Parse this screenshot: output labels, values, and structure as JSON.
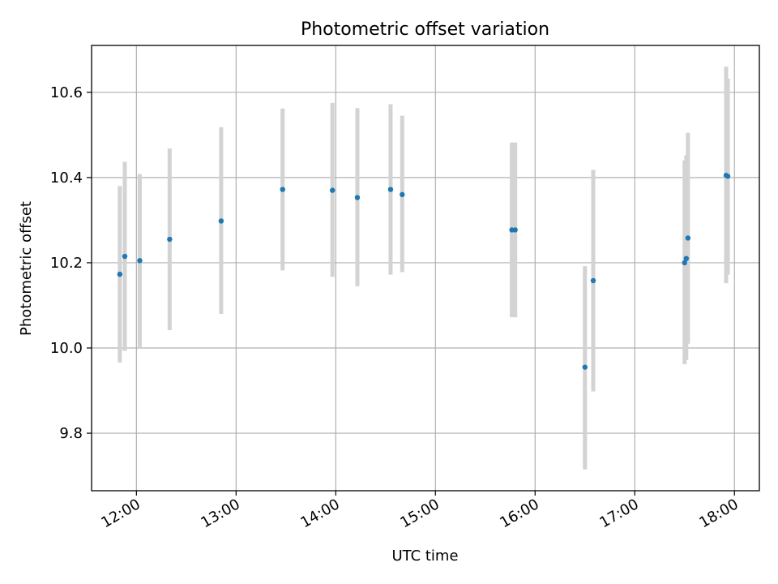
{
  "chart_data": {
    "type": "scatter",
    "title": "Photometric offset variation",
    "xlabel": "UTC time",
    "ylabel": "Photometric offset",
    "x_ticks": [
      "12:00",
      "13:00",
      "14:00",
      "15:00",
      "16:00",
      "17:00",
      "18:00"
    ],
    "y_ticks": [
      "9.8",
      "10.0",
      "10.2",
      "10.4",
      "10.6"
    ],
    "xlim": [
      "11:33",
      "18:15"
    ],
    "ylim": [
      9.665,
      10.71
    ],
    "grid": true,
    "colors": {
      "point": "#1f77b4",
      "errorbar": "#d3d3d3",
      "grid": "#b0b0b0"
    },
    "points": [
      {
        "x": "11:50",
        "y": 10.173,
        "ylo": 9.966,
        "yhi": 10.38
      },
      {
        "x": "11:53",
        "y": 10.215,
        "ylo": 9.993,
        "yhi": 10.437
      },
      {
        "x": "12:02",
        "y": 10.205,
        "ylo": 10.0,
        "yhi": 10.408
      },
      {
        "x": "12:20",
        "y": 10.255,
        "ylo": 10.042,
        "yhi": 10.468
      },
      {
        "x": "12:51",
        "y": 10.298,
        "ylo": 10.08,
        "yhi": 10.518
      },
      {
        "x": "13:28",
        "y": 10.372,
        "ylo": 10.182,
        "yhi": 10.562
      },
      {
        "x": "13:58",
        "y": 10.37,
        "ylo": 10.167,
        "yhi": 10.575
      },
      {
        "x": "14:13",
        "y": 10.353,
        "ylo": 10.145,
        "yhi": 10.563
      },
      {
        "x": "14:33",
        "y": 10.372,
        "ylo": 10.172,
        "yhi": 10.572
      },
      {
        "x": "14:40",
        "y": 10.36,
        "ylo": 10.178,
        "yhi": 10.545
      },
      {
        "x": "15:46",
        "y": 10.277,
        "ylo": 10.072,
        "yhi": 10.482
      },
      {
        "x": "15:48",
        "y": 10.277,
        "ylo": 10.072,
        "yhi": 10.482
      },
      {
        "x": "16:30",
        "y": 9.955,
        "ylo": 9.715,
        "yhi": 10.192
      },
      {
        "x": "16:35",
        "y": 10.158,
        "ylo": 9.898,
        "yhi": 10.418
      },
      {
        "x": "17:30",
        "y": 10.2,
        "ylo": 9.962,
        "yhi": 10.44
      },
      {
        "x": "17:31",
        "y": 10.21,
        "ylo": 9.972,
        "yhi": 10.452
      },
      {
        "x": "17:32",
        "y": 10.258,
        "ylo": 10.01,
        "yhi": 10.505
      },
      {
        "x": "17:55",
        "y": 10.405,
        "ylo": 10.152,
        "yhi": 10.66
      },
      {
        "x": "17:56",
        "y": 10.403,
        "ylo": 10.172,
        "yhi": 10.632
      }
    ]
  }
}
